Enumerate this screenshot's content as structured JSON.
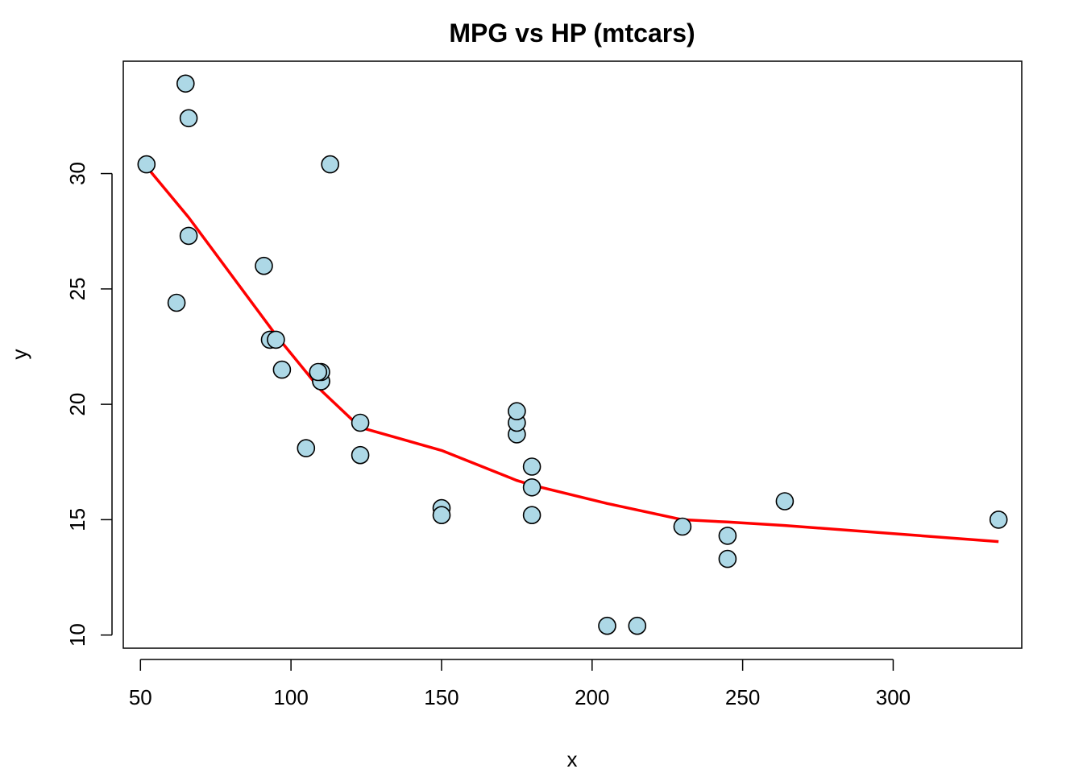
{
  "chart_data": {
    "type": "scatter",
    "title": "MPG vs HP (mtcars)",
    "xlabel": "x",
    "ylabel": "y",
    "xlim": [
      44.3,
      342.7
    ],
    "ylim": [
      9.43,
      34.87
    ],
    "xticks": [
      50,
      100,
      150,
      200,
      250,
      300
    ],
    "yticks": [
      10,
      15,
      20,
      25,
      30
    ],
    "xtick_labels": [
      "50",
      "100",
      "150",
      "200",
      "250",
      "300"
    ],
    "ytick_labels": [
      "10",
      "15",
      "20",
      "25",
      "30"
    ],
    "grid": false,
    "point_color": "#ADD8E6",
    "point_edge_color": "#000000",
    "line_color": "#FF0000",
    "points": [
      {
        "x": 110,
        "y": 21.0
      },
      {
        "x": 110,
        "y": 21.0
      },
      {
        "x": 93,
        "y": 22.8
      },
      {
        "x": 110,
        "y": 21.4
      },
      {
        "x": 175,
        "y": 18.7
      },
      {
        "x": 105,
        "y": 18.1
      },
      {
        "x": 245,
        "y": 14.3
      },
      {
        "x": 62,
        "y": 24.4
      },
      {
        "x": 95,
        "y": 22.8
      },
      {
        "x": 123,
        "y": 19.2
      },
      {
        "x": 123,
        "y": 17.8
      },
      {
        "x": 180,
        "y": 16.4
      },
      {
        "x": 180,
        "y": 17.3
      },
      {
        "x": 180,
        "y": 15.2
      },
      {
        "x": 205,
        "y": 10.4
      },
      {
        "x": 215,
        "y": 10.4
      },
      {
        "x": 230,
        "y": 14.7
      },
      {
        "x": 66,
        "y": 32.4
      },
      {
        "x": 52,
        "y": 30.4
      },
      {
        "x": 65,
        "y": 33.9
      },
      {
        "x": 97,
        "y": 21.5
      },
      {
        "x": 150,
        "y": 15.5
      },
      {
        "x": 150,
        "y": 15.2
      },
      {
        "x": 245,
        "y": 13.3
      },
      {
        "x": 175,
        "y": 19.2
      },
      {
        "x": 66,
        "y": 27.3
      },
      {
        "x": 91,
        "y": 26.0
      },
      {
        "x": 113,
        "y": 30.4
      },
      {
        "x": 264,
        "y": 15.8
      },
      {
        "x": 175,
        "y": 19.7
      },
      {
        "x": 335,
        "y": 15.0
      },
      {
        "x": 109,
        "y": 21.4
      }
    ],
    "smooth_line": [
      {
        "x": 52,
        "y": 30.3
      },
      {
        "x": 66,
        "y": 28.1
      },
      {
        "x": 95,
        "y": 23.0
      },
      {
        "x": 110,
        "y": 20.6
      },
      {
        "x": 123,
        "y": 19.0
      },
      {
        "x": 150,
        "y": 18.0
      },
      {
        "x": 175,
        "y": 16.7
      },
      {
        "x": 180,
        "y": 16.5
      },
      {
        "x": 205,
        "y": 15.7
      },
      {
        "x": 230,
        "y": 15.0
      },
      {
        "x": 245,
        "y": 14.9
      },
      {
        "x": 264,
        "y": 14.75
      },
      {
        "x": 335,
        "y": 14.05
      }
    ]
  }
}
